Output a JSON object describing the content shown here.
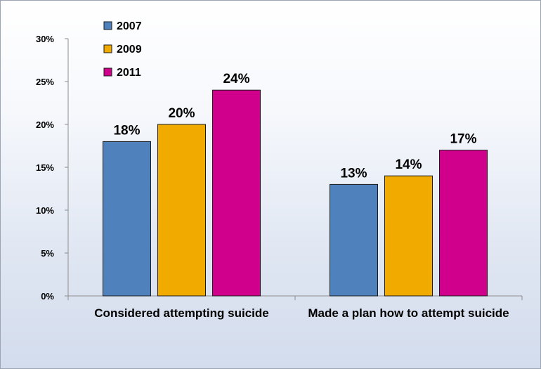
{
  "chart_data": {
    "type": "bar",
    "categories": [
      "Considered attempting suicide",
      "Made a plan how to attempt suicide"
    ],
    "series": [
      {
        "name": "2007",
        "color": "#4f81bd",
        "values": [
          18,
          13
        ],
        "labels": [
          "18%",
          "13%"
        ]
      },
      {
        "name": "2009",
        "color": "#f0aa00",
        "values": [
          20,
          14
        ],
        "labels": [
          "20%",
          "14%"
        ]
      },
      {
        "name": "2011",
        "color": "#d0008c",
        "values": [
          24,
          17
        ],
        "labels": [
          "24%",
          "17%"
        ]
      }
    ],
    "y_ticks": [
      "0%",
      "5%",
      "10%",
      "15%",
      "20%",
      "25%",
      "30%"
    ],
    "ylim": [
      0,
      30
    ],
    "legend_position": "top-left",
    "grid": false
  }
}
